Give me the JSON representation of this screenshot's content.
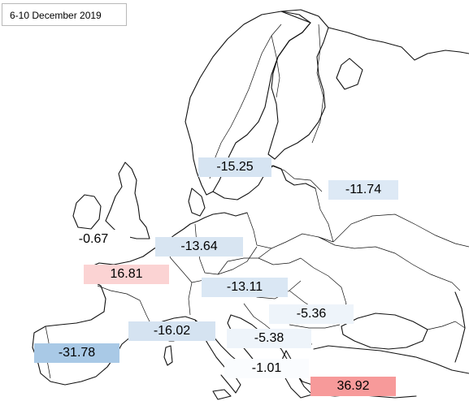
{
  "title": "6-10 December 2019",
  "labels": [
    {
      "id": "sweden",
      "text": "-15.25",
      "value": -15.25,
      "color": "#d6e4f2"
    },
    {
      "id": "russia",
      "text": "-11.74",
      "value": -11.74,
      "color": "#dde9f5"
    },
    {
      "id": "uk",
      "text": "-0.67",
      "value": -0.67,
      "color": "#ffffff"
    },
    {
      "id": "germany",
      "text": "-13.64",
      "value": -13.64,
      "color": "#d8e5f2"
    },
    {
      "id": "france",
      "text": "16.81",
      "value": 16.81,
      "color": "#fbd3d3"
    },
    {
      "id": "hungary",
      "text": "-13.11",
      "value": -13.11,
      "color": "#dae7f4"
    },
    {
      "id": "romania",
      "text": "-5.36",
      "value": -5.36,
      "color": "#eef4fa"
    },
    {
      "id": "italy",
      "text": "-16.02",
      "value": -16.02,
      "color": "#d5e3f1"
    },
    {
      "id": "balkans",
      "text": "-5.38",
      "value": -5.38,
      "color": "#eef4fa"
    },
    {
      "id": "spain",
      "text": "-31.78",
      "value": -31.78,
      "color": "#a9c9e6"
    },
    {
      "id": "greece",
      "text": "-1.01",
      "value": -1.01,
      "color": "#fafcfe"
    },
    {
      "id": "turkey",
      "text": "36.92",
      "value": 36.92,
      "color": "#f79a9a"
    }
  ]
}
